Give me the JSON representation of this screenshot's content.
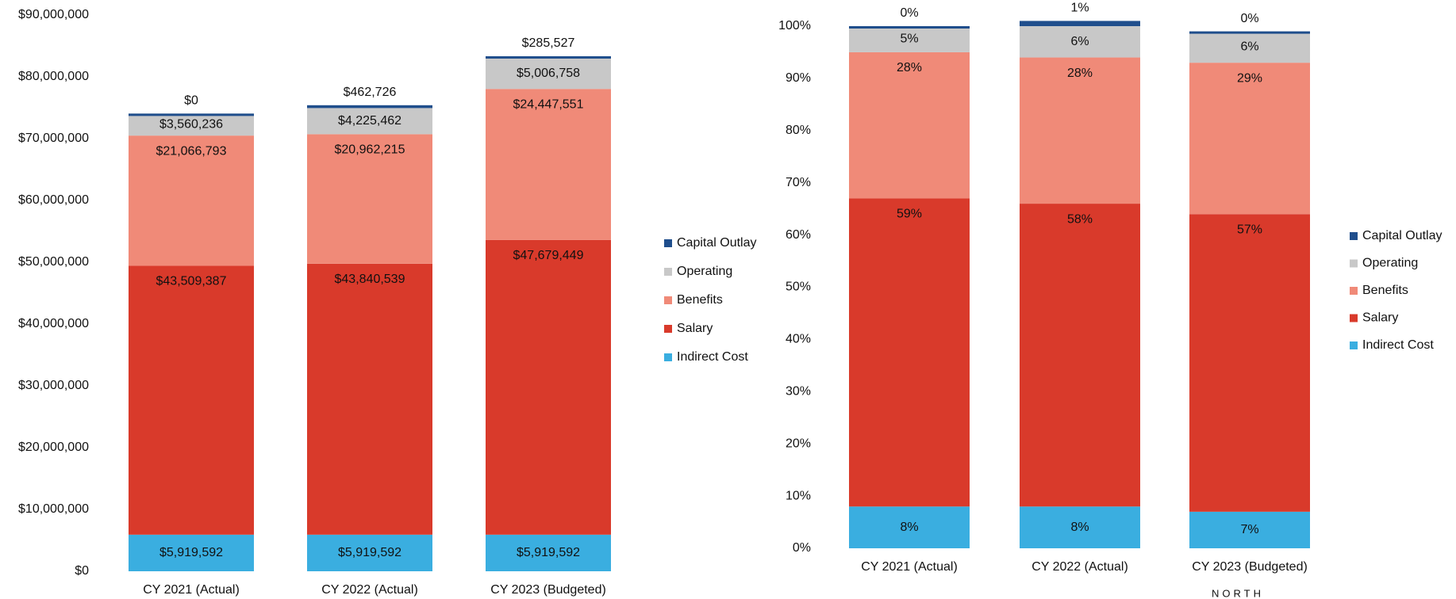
{
  "chart_data": [
    {
      "type": "bar",
      "stacked": true,
      "categories": [
        "CY 2021 (Actual)",
        "CY 2022 (Actual)",
        "CY 2023 (Budgeted)"
      ],
      "series": [
        {
          "name": "Indirect Cost",
          "color": "#3aaee0",
          "values": [
            5919592,
            5919592,
            5919592
          ],
          "value_labels": [
            "$5,919,592",
            "$5,919,592",
            "$5,919,592"
          ]
        },
        {
          "name": "Salary",
          "color": "#d93a2b",
          "values": [
            43509387,
            43840539,
            47679449
          ],
          "value_labels": [
            "$43,509,387",
            "$43,840,539",
            "$47,679,449"
          ]
        },
        {
          "name": "Benefits",
          "color": "#f08a78",
          "values": [
            21066793,
            20962215,
            24447551
          ],
          "value_labels": [
            "$21,066,793",
            "$20,962,215",
            "$24,447,551"
          ]
        },
        {
          "name": "Operating",
          "color": "#c8c8c8",
          "values": [
            3560236,
            4225462,
            5006758
          ],
          "value_labels": [
            "$3,560,236",
            "$4,225,462",
            "$5,006,758"
          ]
        },
        {
          "name": "Capital Outlay",
          "color": "#1f4e8c",
          "values": [
            0,
            462726,
            285527
          ],
          "value_labels": [
            "$0",
            "$462,726",
            "$285,527"
          ]
        }
      ],
      "ylim": [
        0,
        90000000
      ],
      "yticks": [
        {
          "value": 0,
          "label": "$0"
        },
        {
          "value": 10000000,
          "label": "$10,000,000"
        },
        {
          "value": 20000000,
          "label": "$20,000,000"
        },
        {
          "value": 30000000,
          "label": "$30,000,000"
        },
        {
          "value": 40000000,
          "label": "$40,000,000"
        },
        {
          "value": 50000000,
          "label": "$50,000,000"
        },
        {
          "value": 60000000,
          "label": "$60,000,000"
        },
        {
          "value": 70000000,
          "label": "$70,000,000"
        },
        {
          "value": 80000000,
          "label": "$80,000,000"
        },
        {
          "value": 90000000,
          "label": "$90,000,000"
        }
      ],
      "legend": "right"
    },
    {
      "type": "bar",
      "stacked": true,
      "categories": [
        "CY 2021 (Actual)",
        "CY 2022 (Actual)",
        "CY 2023 (Budgeted)"
      ],
      "series": [
        {
          "name": "Indirect Cost",
          "color": "#3aaee0",
          "values": [
            8,
            8,
            7
          ],
          "value_labels": [
            "8%",
            "8%",
            "7%"
          ]
        },
        {
          "name": "Salary",
          "color": "#d93a2b",
          "values": [
            59,
            58,
            57
          ],
          "value_labels": [
            "59%",
            "58%",
            "57%"
          ]
        },
        {
          "name": "Benefits",
          "color": "#f08a78",
          "values": [
            28,
            28,
            29
          ],
          "value_labels": [
            "28%",
            "28%",
            "29%"
          ]
        },
        {
          "name": "Operating",
          "color": "#c8c8c8",
          "values": [
            5,
            6,
            6
          ],
          "value_labels": [
            "5%",
            "6%",
            "6%"
          ]
        },
        {
          "name": "Capital Outlay",
          "color": "#1f4e8c",
          "values": [
            0,
            1,
            0
          ],
          "value_labels": [
            "0%",
            "1%",
            "0%"
          ]
        }
      ],
      "ylim": [
        0,
        100
      ],
      "yticks": [
        {
          "value": 0,
          "label": "0%"
        },
        {
          "value": 10,
          "label": "10%"
        },
        {
          "value": 20,
          "label": "20%"
        },
        {
          "value": 30,
          "label": "30%"
        },
        {
          "value": 40,
          "label": "40%"
        },
        {
          "value": 50,
          "label": "50%"
        },
        {
          "value": 60,
          "label": "60%"
        },
        {
          "value": 70,
          "label": "70%"
        },
        {
          "value": 80,
          "label": "80%"
        },
        {
          "value": 90,
          "label": "90%"
        },
        {
          "value": 100,
          "label": "100%"
        }
      ],
      "legend": "right"
    }
  ],
  "footer_text": "NORTH"
}
